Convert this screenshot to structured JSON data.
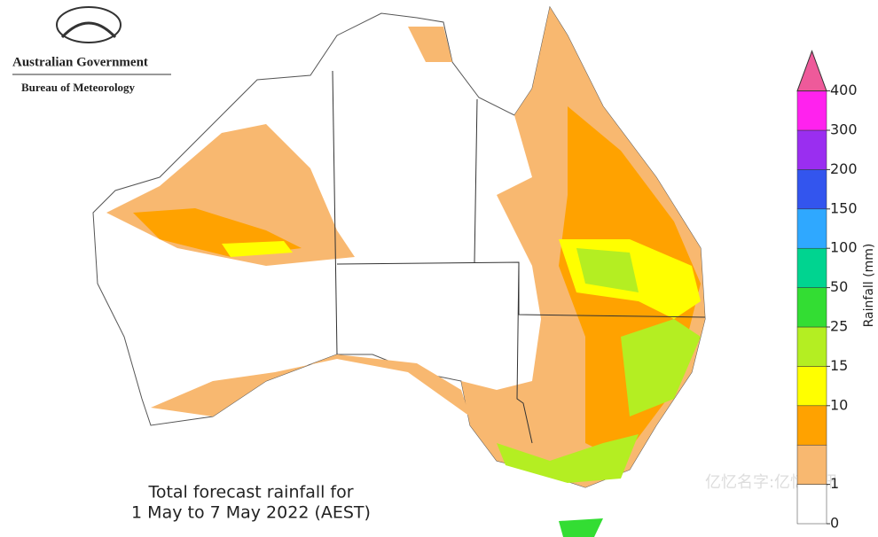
{
  "header": {
    "agency": "Australian Government",
    "bureau": "Bureau of Meteorology"
  },
  "title": [
    "Total forecast rainfall for",
    "1 May to 7 May 2022 (AEST)"
  ],
  "legend": {
    "title": "Rainfall (mm)",
    "ticks": [
      0,
      1,
      10,
      15,
      25,
      50,
      100,
      150,
      200,
      300,
      400
    ],
    "tick_positions": [
      0,
      1,
      3,
      4,
      5,
      6,
      7,
      8,
      9,
      10,
      11
    ],
    "colors": [
      "#ffffff",
      "#f8b870",
      "#ffa200",
      "#ffff00",
      "#b4ee22",
      "#33dd33",
      "#00d490",
      "#2fa8ff",
      "#3355ee",
      "#9a2ef0",
      "#ff22ee",
      "#ee5a9a"
    ]
  },
  "watermark": "亿忆名字:亿忆资讯"
}
